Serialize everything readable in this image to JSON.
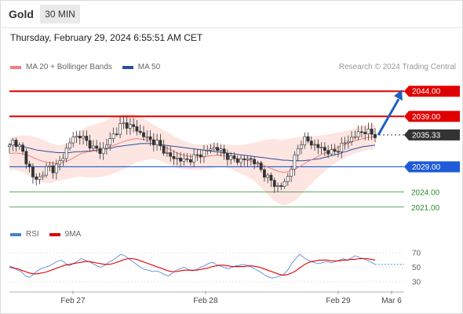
{
  "header": {
    "symbol": "Gold",
    "timeframe": "30 MIN"
  },
  "datetime": "Thursday, February 29, 2024 6:55:51 AM CET",
  "legend": {
    "ma_bollinger": "MA 20 + Bollinger Bands",
    "ma50": "MA 50",
    "ma20_color": "#f08080",
    "ma50_color": "#2b4f9e"
  },
  "copyright": "Research © 2024 Trading Central",
  "rsi_legend": {
    "rsi": "RSI",
    "ma9": "9MA",
    "rsi_color": "#4a7fd4",
    "ma9_color": "#e00000"
  },
  "chart_data": [
    {
      "type": "candlestick",
      "title": "Gold",
      "timeframe": "30 MIN",
      "x_ticks": [
        "Feb 27",
        "Feb 28",
        "Feb 29",
        "Mar 6"
      ],
      "ylim": [
        2018,
        2047
      ],
      "current_price": 2035.33,
      "levels": [
        {
          "label": "2044.00",
          "value": 2044.0,
          "type": "resistance",
          "color": "#e00000"
        },
        {
          "label": "2039.00",
          "value": 2039.0,
          "type": "resistance",
          "color": "#e00000"
        },
        {
          "label": "2035.33",
          "value": 2035.33,
          "type": "current",
          "color": "#333333"
        },
        {
          "label": "2029.00",
          "value": 2029.0,
          "type": "pivot",
          "color": "#1e5bd6"
        },
        {
          "label": "2024.00",
          "value": 2024.0,
          "type": "support",
          "color": "#2e8b2e"
        },
        {
          "label": "2021.00",
          "value": 2021.0,
          "type": "support",
          "color": "#2e8b2e"
        }
      ],
      "close_path": [
        2033.0,
        2034.2,
        2033.5,
        2032.5,
        2030.4,
        2029.0,
        2026.7,
        2026.5,
        2027.2,
        2028.5,
        2029.0,
        2028.5,
        2029.3,
        2030.2,
        2032.0,
        2033.5,
        2034.8,
        2035.0,
        2035.3,
        2034.2,
        2033.6,
        2032.8,
        2032.4,
        2031.9,
        2032.9,
        2034.0,
        2035.3,
        2036.0,
        2037.3,
        2037.6,
        2037.1,
        2036.9,
        2036.4,
        2035.6,
        2035.0,
        2034.5,
        2034.0,
        2033.9,
        2032.9,
        2032.2,
        2031.1,
        2030.8,
        2030.7,
        2030.4,
        2030.2,
        2030.4,
        2030.7,
        2031.1,
        2031.5,
        2032.0,
        2032.3,
        2032.8,
        2032.8,
        2032.2,
        2031.6,
        2031.0,
        2030.5,
        2030.4,
        2030.3,
        2030.4,
        2030.6,
        2030.4,
        2029.7,
        2028.7,
        2027.7,
        2026.8,
        2026.1,
        2025.2,
        2024.9,
        2025.6,
        2027.0,
        2029.2,
        2031.3,
        2033.5,
        2034.6,
        2034.1,
        2033.6,
        2033.2,
        2032.8,
        2032.4,
        2032.1,
        2031.8,
        2032.1,
        2032.8,
        2033.5,
        2034.1,
        2034.7,
        2035.2,
        2035.7,
        2036.1,
        2036.0,
        2035.5,
        2035.3
      ],
      "ma20": [
        2031.6,
        2031.7,
        2031.7,
        2031.6,
        2031.4,
        2031.2,
        2030.8,
        2030.5,
        2030.2,
        2030.0,
        2029.8,
        2029.7,
        2029.7,
        2029.8,
        2030.0,
        2030.3,
        2030.7,
        2031.2,
        2031.6,
        2031.8,
        2032.0,
        2032.1,
        2032.2,
        2032.4,
        2032.6,
        2032.9,
        2033.2,
        2033.5,
        2033.8,
        2034.1,
        2034.3,
        2034.5,
        2034.6,
        2034.5,
        2034.4,
        2034.2,
        2034.0,
        2033.7,
        2033.4,
        2033.0,
        2032.6,
        2032.2,
        2031.8,
        2031.5,
        2031.3,
        2031.1,
        2031.0,
        2030.9,
        2030.9,
        2031.0,
        2031.1,
        2031.2,
        2031.3,
        2031.3,
        2031.2,
        2031.1,
        2030.9,
        2030.7,
        2030.5,
        2030.4,
        2030.3,
        2030.1,
        2029.9,
        2029.6,
        2029.3,
        2028.9,
        2028.6,
        2028.3,
        2028.0,
        2027.9,
        2028.0,
        2028.3,
        2028.6,
        2029.0,
        2029.5,
        2030.0,
        2030.4,
        2030.8,
        2031.2,
        2031.6,
        2032.0,
        2032.4,
        2032.7,
        2033.0,
        2033.3,
        2033.6,
        2033.9,
        2034.2,
        2034.4,
        2034.6,
        2034.8,
        2034.9,
        2035.0
      ],
      "boll_width": [
        3.2,
        3.3,
        3.4,
        3.6,
        3.8,
        4.0,
        4.2,
        4.3,
        4.3,
        4.2,
        4.0,
        3.8,
        3.6,
        3.5,
        3.5,
        3.6,
        3.9,
        4.2,
        4.6,
        4.9,
        5.1,
        5.2,
        5.3,
        5.4,
        5.5,
        5.6,
        5.6,
        5.6,
        5.6,
        5.5,
        5.3,
        5.0,
        4.7,
        4.4,
        4.1,
        3.8,
        3.5,
        3.3,
        3.2,
        3.2,
        3.2,
        3.1,
        3.0,
        2.9,
        2.8,
        2.7,
        2.6,
        2.5,
        2.5,
        2.5,
        2.5,
        2.5,
        2.4,
        2.3,
        2.3,
        2.3,
        2.4,
        2.6,
        2.8,
        3.0,
        3.3,
        3.6,
        4.0,
        4.5,
        5.0,
        5.5,
        5.9,
        6.2,
        6.4,
        6.5,
        6.5,
        6.4,
        6.2,
        5.9,
        5.5,
        5.1,
        4.7,
        4.3,
        4.0,
        3.7,
        3.4,
        3.2,
        3.0,
        2.8,
        2.7,
        2.6,
        2.5,
        2.5,
        2.5,
        2.5,
        2.5,
        2.5,
        2.5
      ],
      "ma50": [
        2033.5,
        2033.4,
        2033.3,
        2033.1,
        2032.9,
        2032.7,
        2032.5,
        2032.3,
        2032.2,
        2032.1,
        2032.0,
        2031.9,
        2031.8,
        2031.8,
        2031.8,
        2031.8,
        2031.9,
        2032.0,
        2032.0,
        2032.1,
        2032.1,
        2032.2,
        2032.3,
        2032.4,
        2032.5,
        2032.7,
        2032.8,
        2033.0,
        2033.1,
        2033.2,
        2033.3,
        2033.4,
        2033.5,
        2033.6,
        2033.6,
        2033.6,
        2033.6,
        2033.5,
        2033.4,
        2033.3,
        2033.2,
        2033.1,
        2033.0,
        2032.9,
        2032.8,
        2032.7,
        2032.6,
        2032.5,
        2032.4,
        2032.3,
        2032.2,
        2032.1,
        2032.0,
        2031.9,
        2031.8,
        2031.7,
        2031.6,
        2031.5,
        2031.4,
        2031.3,
        2031.2,
        2031.1,
        2031.0,
        2030.9,
        2030.8,
        2030.7,
        2030.6,
        2030.5,
        2030.4,
        2030.3,
        2030.3,
        2030.2,
        2030.2,
        2030.2,
        2030.2,
        2030.3,
        2030.4,
        2030.5,
        2030.6,
        2030.8,
        2031.0,
        2031.2,
        2031.4,
        2031.6,
        2031.9,
        2032.1,
        2032.4,
        2032.6,
        2032.8,
        2033.0,
        2033.1,
        2033.2,
        2033.3
      ],
      "projection": {
        "from": 2035.3,
        "to": 2044.0
      }
    },
    {
      "type": "line",
      "title": "RSI",
      "y_ticks": [
        70,
        50,
        30
      ],
      "ylim": [
        20,
        80
      ],
      "series": [
        {
          "name": "RSI",
          "color": "#4a7fd4",
          "values": [
            52,
            50,
            46,
            44,
            38,
            36,
            40,
            45,
            48,
            50,
            52,
            55,
            58,
            60,
            56,
            52,
            55,
            58,
            62,
            60,
            58,
            55,
            52,
            50,
            53,
            57,
            60,
            64,
            68,
            66,
            62,
            58,
            54,
            50,
            47,
            46,
            44,
            45,
            43,
            40,
            38,
            42,
            46,
            48,
            50,
            47,
            45,
            47,
            50,
            52,
            55,
            57,
            54,
            52,
            50,
            48,
            50,
            52,
            53,
            54,
            52,
            50,
            47,
            44,
            40,
            37,
            35,
            36,
            38,
            40,
            46,
            55,
            62,
            68,
            64,
            60,
            58,
            56,
            55,
            57,
            58,
            56,
            58,
            60,
            62,
            60,
            63,
            66,
            64,
            62,
            60,
            57,
            54
          ]
        },
        {
          "name": "9MA",
          "color": "#e00000",
          "values": [
            50,
            49,
            48,
            46,
            44,
            42,
            41,
            41,
            42,
            43,
            45,
            47,
            49,
            51,
            53,
            54,
            55,
            56,
            57,
            58,
            58,
            57,
            56,
            55,
            54,
            54,
            55,
            57,
            59,
            61,
            62,
            62,
            61,
            59,
            57,
            55,
            53,
            51,
            49,
            47,
            45,
            44,
            44,
            45,
            46,
            46,
            46,
            46,
            47,
            48,
            49,
            51,
            52,
            53,
            53,
            52,
            51,
            51,
            51,
            51,
            52,
            52,
            51,
            50,
            48,
            46,
            44,
            42,
            40,
            39,
            40,
            42,
            45,
            49,
            53,
            56,
            58,
            59,
            60,
            60,
            60,
            59,
            59,
            59,
            60,
            60,
            61,
            61,
            62,
            62,
            62,
            61,
            60
          ]
        }
      ]
    }
  ]
}
